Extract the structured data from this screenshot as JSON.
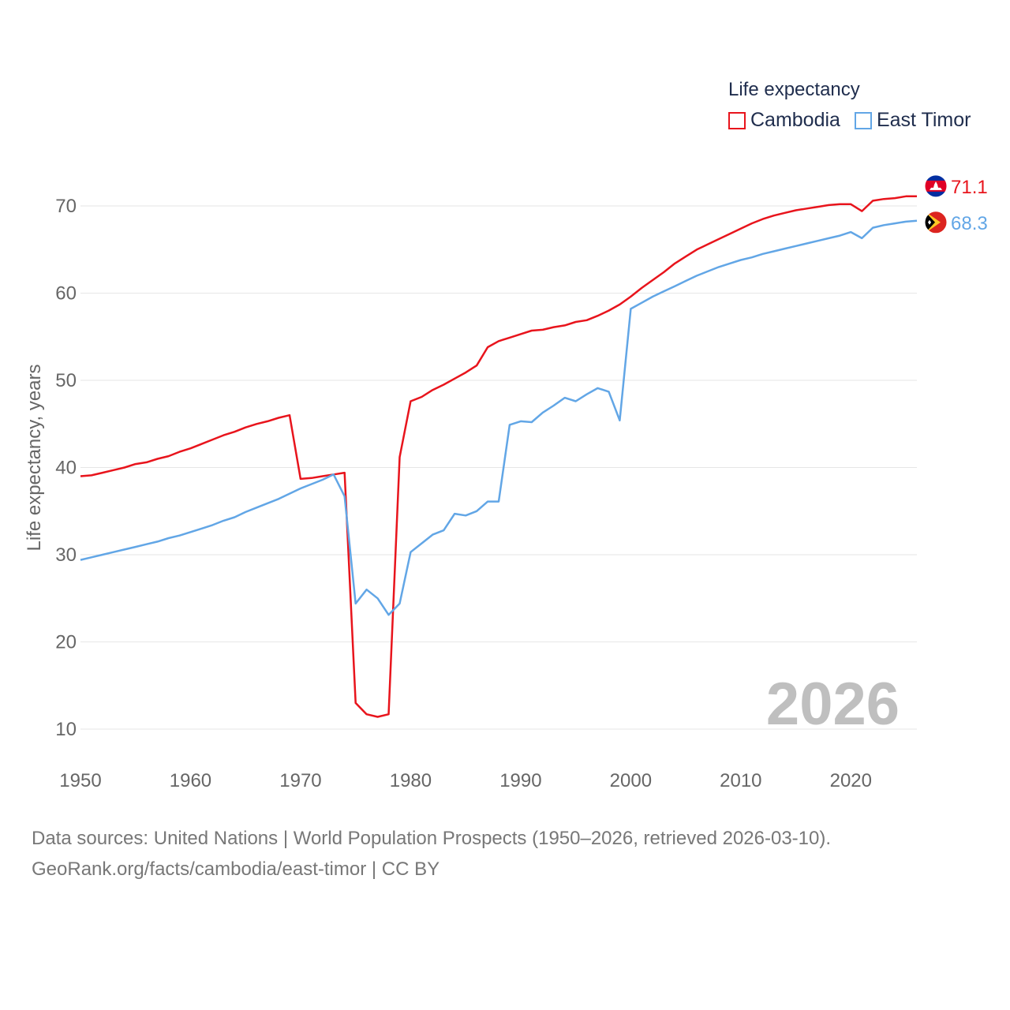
{
  "legend": {
    "title": "Life expectancy",
    "items": [
      {
        "label": "Cambodia",
        "color": "#e8141c"
      },
      {
        "label": "East Timor",
        "color": "#62a6e6"
      }
    ]
  },
  "footer": {
    "line1": "Data sources: United Nations | World Population Prospects (1950–2026, retrieved 2026-03-10).",
    "line2": "GeoRank.org/facts/cambodia/east-timor | CC BY"
  },
  "chart_data": {
    "type": "line",
    "title": "Life expectancy",
    "xlabel": "",
    "ylabel": "Life expectancy, years",
    "xlim": [
      1950,
      2026
    ],
    "ylim": [
      5,
      75
    ],
    "xticks": [
      1950,
      1960,
      1970,
      1980,
      1990,
      2000,
      2010,
      2020
    ],
    "yticks": [
      10,
      20,
      30,
      40,
      50,
      60,
      70
    ],
    "grid": true,
    "year_watermark": "2026",
    "series": [
      {
        "name": "Cambodia",
        "color": "#e8141c",
        "end_label": "71.1",
        "flag": "cambodia-flag",
        "x": [
          1950,
          1951,
          1952,
          1953,
          1954,
          1955,
          1956,
          1957,
          1958,
          1959,
          1960,
          1961,
          1962,
          1963,
          1964,
          1965,
          1966,
          1967,
          1968,
          1969,
          1970,
          1971,
          1972,
          1973,
          1974,
          1975,
          1976,
          1977,
          1978,
          1979,
          1980,
          1981,
          1982,
          1983,
          1984,
          1985,
          1986,
          1987,
          1988,
          1989,
          1990,
          1991,
          1992,
          1993,
          1994,
          1995,
          1996,
          1997,
          1998,
          1999,
          2000,
          2001,
          2002,
          2003,
          2004,
          2005,
          2006,
          2007,
          2008,
          2009,
          2010,
          2011,
          2012,
          2013,
          2014,
          2015,
          2016,
          2017,
          2018,
          2019,
          2020,
          2021,
          2022,
          2023,
          2024,
          2025,
          2026
        ],
        "values": [
          39.0,
          39.1,
          39.4,
          39.7,
          40.0,
          40.4,
          40.6,
          41.0,
          41.3,
          41.8,
          42.2,
          42.7,
          43.2,
          43.7,
          44.1,
          44.6,
          45.0,
          45.3,
          45.7,
          46.0,
          38.7,
          38.8,
          39.0,
          39.2,
          39.4,
          13.0,
          11.7,
          11.4,
          11.7,
          41.2,
          47.6,
          48.1,
          48.9,
          49.5,
          50.2,
          50.9,
          51.7,
          53.8,
          54.5,
          54.9,
          55.3,
          55.7,
          55.8,
          56.1,
          56.3,
          56.7,
          56.9,
          57.4,
          58.0,
          58.7,
          59.6,
          60.6,
          61.5,
          62.4,
          63.4,
          64.2,
          65.0,
          65.6,
          66.2,
          66.8,
          67.4,
          68.0,
          68.5,
          68.9,
          69.2,
          69.5,
          69.7,
          69.9,
          70.1,
          70.2,
          70.2,
          69.4,
          70.6,
          70.8,
          70.9,
          71.1,
          71.1
        ]
      },
      {
        "name": "East Timor",
        "color": "#62a6e6",
        "end_label": "68.3",
        "flag": "east-timor-flag",
        "x": [
          1950,
          1951,
          1952,
          1953,
          1954,
          1955,
          1956,
          1957,
          1958,
          1959,
          1960,
          1961,
          1962,
          1963,
          1964,
          1965,
          1966,
          1967,
          1968,
          1969,
          1970,
          1971,
          1972,
          1973,
          1974,
          1975,
          1976,
          1977,
          1978,
          1979,
          1980,
          1981,
          1982,
          1983,
          1984,
          1985,
          1986,
          1987,
          1988,
          1989,
          1990,
          1991,
          1992,
          1993,
          1994,
          1995,
          1996,
          1997,
          1998,
          1999,
          2000,
          2001,
          2002,
          2003,
          2004,
          2005,
          2006,
          2007,
          2008,
          2009,
          2010,
          2011,
          2012,
          2013,
          2014,
          2015,
          2016,
          2017,
          2018,
          2019,
          2020,
          2021,
          2022,
          2023,
          2024,
          2025,
          2026
        ],
        "values": [
          29.4,
          29.7,
          30.0,
          30.3,
          30.6,
          30.9,
          31.2,
          31.5,
          31.9,
          32.2,
          32.6,
          33.0,
          33.4,
          33.9,
          34.3,
          34.9,
          35.4,
          35.9,
          36.4,
          37.0,
          37.6,
          38.1,
          38.6,
          39.2,
          36.7,
          24.4,
          26.0,
          25.0,
          23.1,
          24.4,
          30.3,
          31.3,
          32.3,
          32.8,
          34.7,
          34.5,
          35.0,
          36.1,
          36.1,
          44.9,
          45.3,
          45.2,
          46.3,
          47.1,
          48.0,
          47.6,
          48.4,
          49.1,
          48.7,
          45.4,
          58.2,
          58.9,
          59.6,
          60.2,
          60.8,
          61.4,
          62.0,
          62.5,
          63.0,
          63.4,
          63.8,
          64.1,
          64.5,
          64.8,
          65.1,
          65.4,
          65.7,
          66.0,
          66.3,
          66.6,
          67.0,
          66.3,
          67.5,
          67.8,
          68.0,
          68.2,
          68.3
        ]
      }
    ]
  }
}
